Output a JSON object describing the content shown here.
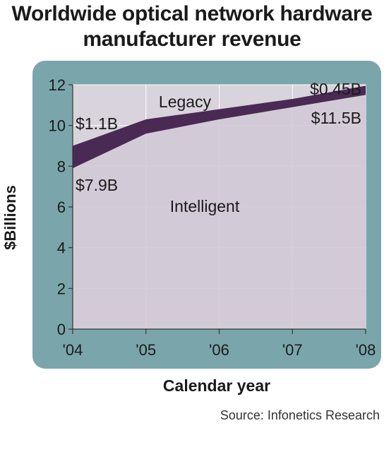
{
  "chart_data": {
    "type": "area",
    "title": "Worldwide optical network hardware manufacturer revenue",
    "xlabel": "Calendar year",
    "ylabel": "$Billions",
    "source": "Source: Infonetics Research",
    "categories": [
      "'04",
      "'05",
      "'06",
      "'07",
      "'08"
    ],
    "ylim": [
      0,
      12
    ],
    "yticks": [
      "0",
      "2",
      "4",
      "6",
      "8",
      "10",
      "12"
    ],
    "stacked": true,
    "grid": true,
    "series": [
      {
        "name": "Intelligent",
        "values": [
          7.9,
          9.6,
          10.3,
          10.9,
          11.5
        ],
        "color": "#d2c8d6"
      },
      {
        "name": "Legacy",
        "values": [
          1.1,
          0.7,
          0.5,
          0.4,
          0.45
        ],
        "color": "#4a2a55"
      }
    ],
    "annotations": {
      "legacy_start": "$1.1B",
      "intelligent_start": "$7.9B",
      "legacy_end": "$0.45B",
      "intelligent_end": "$11.5B"
    },
    "colors": {
      "panel": "#7aa6ab",
      "grid": "#ffffff",
      "axis": "#333333"
    }
  }
}
